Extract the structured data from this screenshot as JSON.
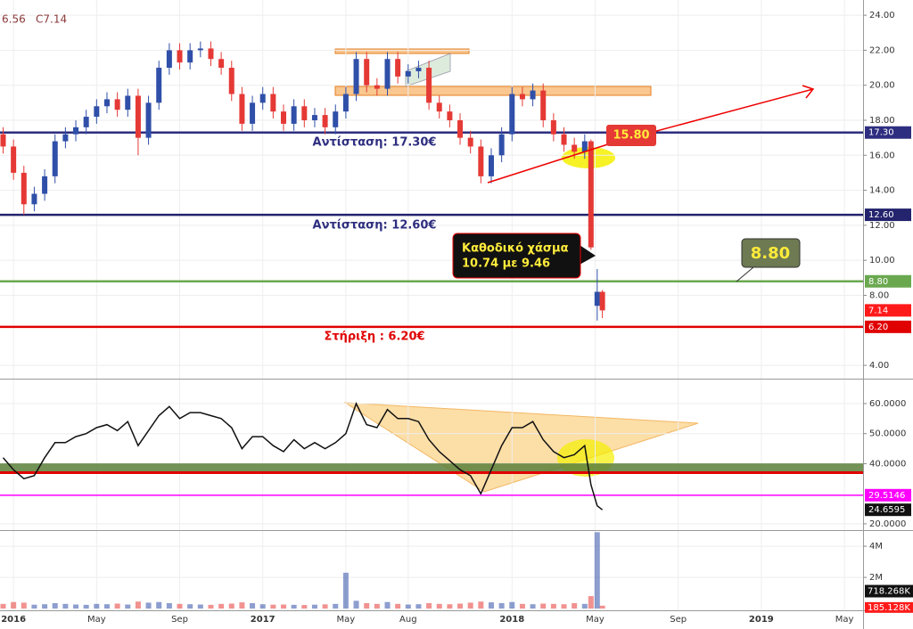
{
  "chart_data": {
    "type": "candlestick",
    "header": [
      "6.56",
      "C7.14"
    ],
    "xlim": [
      -0.65,
      40.9
    ],
    "xticks": [
      {
        "value": 0,
        "label": "2016"
      },
      {
        "value": 4,
        "label": "May"
      },
      {
        "value": 8,
        "label": "Sep"
      },
      {
        "value": 12,
        "label": "2017"
      },
      {
        "value": 16,
        "label": "May"
      },
      {
        "value": 19,
        "label": "Aug"
      },
      {
        "value": 24,
        "label": "2018"
      },
      {
        "value": 28,
        "label": "May"
      },
      {
        "value": 32,
        "label": "Sep"
      },
      {
        "value": 36,
        "label": "2019"
      },
      {
        "value": 40,
        "label": "May"
      }
    ],
    "ylim": [
      3.24,
      24.87
    ],
    "yticks": [
      {
        "value": 4,
        "label": "4.00"
      },
      {
        "value": 8,
        "label": "8.00"
      },
      {
        "value": 10,
        "label": "10.00"
      },
      {
        "value": 12,
        "label": "12.00"
      },
      {
        "value": 14,
        "label": "14.00"
      },
      {
        "value": 16,
        "label": "16.00"
      },
      {
        "value": 18,
        "label": "18.00"
      },
      {
        "value": 20,
        "label": "20.00"
      },
      {
        "value": 22,
        "label": "22.00"
      },
      {
        "value": 24,
        "label": "24.00"
      }
    ],
    "grid": true,
    "up_color": "#2f4fa8",
    "down_color": "#e53935",
    "candles": {
      "x": [
        -0.5,
        0,
        0.5,
        1,
        1.5,
        2,
        2.5,
        3,
        3.5,
        4,
        4.5,
        5,
        5.5,
        6,
        6.5,
        7,
        7.5,
        8,
        8.5,
        9,
        9.5,
        10,
        10.5,
        11,
        11.5,
        12,
        12.5,
        13,
        13.5,
        14,
        14.5,
        15,
        15.5,
        16,
        16.5,
        17,
        17.5,
        18,
        18.5,
        19,
        19.5,
        20,
        20.5,
        21,
        21.5,
        22,
        22.5,
        23,
        23.5,
        24,
        24.5,
        25,
        25.5,
        26,
        26.5,
        27,
        27.5,
        27.8,
        28.1,
        28.35
      ],
      "open": [
        17.2,
        16.5,
        15.0,
        13.2,
        13.8,
        14.8,
        16.8,
        17.2,
        17.6,
        18.2,
        18.8,
        19.2,
        18.6,
        19.4,
        17.0,
        19.0,
        21.0,
        22.0,
        21.3,
        22.0,
        22.1,
        21.5,
        21.0,
        19.5,
        17.8,
        19.0,
        19.5,
        18.5,
        17.8,
        18.8,
        18.0,
        18.3,
        17.6,
        18.5,
        19.5,
        21.5,
        20.0,
        19.8,
        21.5,
        20.5,
        20.8,
        21.0,
        19.0,
        18.5,
        18.0,
        17.0,
        16.5,
        14.8,
        16.0,
        17.2,
        19.5,
        19.2,
        19.7,
        18.0,
        17.2,
        16.6,
        16.2,
        16.8,
        7.4,
        8.2
      ],
      "high": [
        17.6,
        16.9,
        15.4,
        14.2,
        15.2,
        17.2,
        17.6,
        18.0,
        18.6,
        19.2,
        19.6,
        19.6,
        19.8,
        19.8,
        19.4,
        21.4,
        22.4,
        22.4,
        22.4,
        22.5,
        22.5,
        21.9,
        21.4,
        19.9,
        19.4,
        19.9,
        19.9,
        18.9,
        19.2,
        19.2,
        18.7,
        18.7,
        18.9,
        19.9,
        21.9,
        21.9,
        20.4,
        21.9,
        21.9,
        21.2,
        21.4,
        21.4,
        19.4,
        18.9,
        18.4,
        17.4,
        16.9,
        16.4,
        17.6,
        19.9,
        19.9,
        20.1,
        20.1,
        18.4,
        17.6,
        17.0,
        17.2,
        16.9,
        9.5,
        8.3
      ],
      "low": [
        16.1,
        14.6,
        12.6,
        12.8,
        13.4,
        14.4,
        16.4,
        16.8,
        17.2,
        17.8,
        18.4,
        18.2,
        18.2,
        16.0,
        16.6,
        18.6,
        20.6,
        20.9,
        20.9,
        21.6,
        21.1,
        20.6,
        19.1,
        17.4,
        17.4,
        18.6,
        18.1,
        17.4,
        17.4,
        17.6,
        17.6,
        17.2,
        17.2,
        18.1,
        19.1,
        19.6,
        19.4,
        19.4,
        20.1,
        20.1,
        20.4,
        18.6,
        18.1,
        17.6,
        16.6,
        16.1,
        14.4,
        14.4,
        15.6,
        16.8,
        18.8,
        18.8,
        17.6,
        16.8,
        16.2,
        15.8,
        15.8,
        10.6,
        6.56,
        6.7
      ],
      "close": [
        16.5,
        15.0,
        13.2,
        13.8,
        14.8,
        16.8,
        17.2,
        17.6,
        18.2,
        18.8,
        19.2,
        18.6,
        19.4,
        17.0,
        19.0,
        21.0,
        22.0,
        21.3,
        22.0,
        22.1,
        21.5,
        21.0,
        19.5,
        17.8,
        19.0,
        19.5,
        18.5,
        17.8,
        18.8,
        18.0,
        18.3,
        17.6,
        18.5,
        19.5,
        21.5,
        20.0,
        19.8,
        21.5,
        20.5,
        20.8,
        21.0,
        19.0,
        18.5,
        18.0,
        17.0,
        16.5,
        14.8,
        16.0,
        17.2,
        19.5,
        19.2,
        19.7,
        18.0,
        17.2,
        16.6,
        16.2,
        16.8,
        10.74,
        8.2,
        7.14
      ]
    },
    "price_levels": [
      {
        "value": 17.3,
        "label": "17.30",
        "color": "#2e2e80"
      },
      {
        "value": 12.6,
        "label": "12.60",
        "color": "#23236e"
      },
      {
        "value": 8.8,
        "label": "8.80",
        "color": "#6aa84f"
      },
      {
        "value": 6.2,
        "label": "6.20",
        "color": "#e00000"
      }
    ],
    "annotations": {
      "resistance_high": "Αντίσταση: 17.30€",
      "resistance_low": "Αντίσταση: 12.60€",
      "support": "Στήριξη : 6.20€",
      "gap_title": "Καθοδικό χάσμα",
      "gap_range": "10.74 με 9.46",
      "target_mark": "15.80",
      "callout_level": "8.80"
    },
    "rsi": {
      "ylim": [
        17.9,
        67.4
      ],
      "yticks": [
        {
          "value": 20,
          "label": "20.0000"
        },
        {
          "value": 40,
          "label": "40.0000"
        },
        {
          "value": 50,
          "label": "50.0000"
        },
        {
          "value": 60,
          "label": "60.0000"
        }
      ],
      "color": "#111111",
      "values": [
        42,
        38,
        35,
        36,
        42,
        47,
        47,
        49,
        50,
        52,
        53,
        51,
        54,
        46,
        51,
        56,
        59,
        55,
        57,
        57,
        56,
        55,
        52,
        45,
        49,
        49,
        46,
        44,
        48,
        45,
        47,
        45,
        47,
        50,
        60,
        53,
        52,
        58,
        55,
        55,
        54,
        48,
        44,
        41,
        38,
        36,
        30,
        38,
        46,
        52,
        52,
        54,
        48,
        44,
        42,
        43,
        46,
        33,
        26,
        24.6595
      ],
      "band": [
        36.8,
        40.1
      ],
      "band_color": "#5b7f3a",
      "support_line": 37,
      "support_color": "#e00000",
      "level": 29.5146,
      "level_color": "#ff00ff"
    },
    "volume": {
      "ylim": [
        -110000,
        4920000
      ],
      "yticks": [
        {
          "value": 2000000,
          "label": "2M"
        },
        {
          "value": 4000000,
          "label": "4M"
        }
      ],
      "values": [
        300000,
        420000,
        380000,
        250000,
        280000,
        350000,
        300000,
        260000,
        240000,
        300000,
        280000,
        320000,
        260000,
        450000,
        380000,
        420000,
        350000,
        300000,
        280000,
        260000,
        240000,
        300000,
        320000,
        400000,
        350000,
        280000,
        250000,
        260000,
        240000,
        230000,
        250000,
        270000,
        300000,
        2300000,
        500000,
        350000,
        300000,
        420000,
        300000,
        260000,
        280000,
        350000,
        300000,
        280000,
        320000,
        380000,
        450000,
        400000,
        350000,
        420000,
        300000,
        280000,
        320000,
        300000,
        280000,
        350000,
        300000,
        800000,
        4900000,
        185128
      ],
      "last_label": "185.128K",
      "ma_label": {
        "value": 718268,
        "label": "718.268K"
      }
    }
  }
}
